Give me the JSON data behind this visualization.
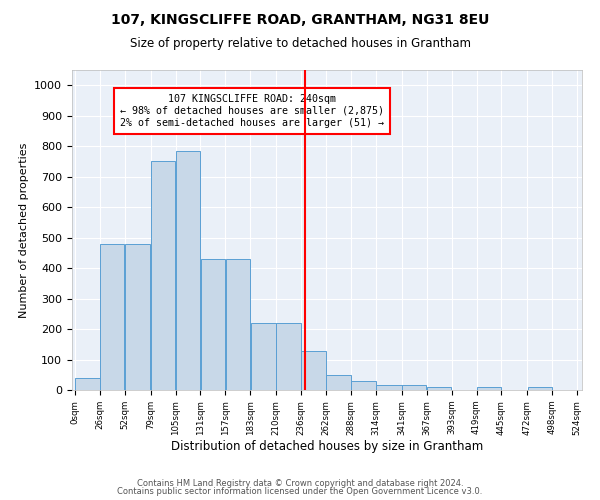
{
  "title": "107, KINGSCLIFFE ROAD, GRANTHAM, NG31 8EU",
  "subtitle": "Size of property relative to detached houses in Grantham",
  "xlabel": "Distribution of detached houses by size in Grantham",
  "ylabel": "Number of detached properties",
  "bar_color": "#c8d8e8",
  "bar_edge_color": "#5a9fd4",
  "background_color": "#eaf0f8",
  "grid_color": "#ffffff",
  "red_line_x": 240,
  "annotation_text": "107 KINGSCLIFFE ROAD: 240sqm\n← 98% of detached houses are smaller (2,875)\n2% of semi-detached houses are larger (51) →",
  "bin_edges": [
    0,
    26,
    52,
    79,
    105,
    131,
    157,
    183,
    210,
    236,
    262,
    288,
    314,
    341,
    367,
    393,
    419,
    445,
    472,
    498,
    524
  ],
  "bar_heights": [
    40,
    480,
    480,
    750,
    785,
    430,
    430,
    220,
    220,
    128,
    50,
    28,
    15,
    15,
    10,
    0,
    10,
    0,
    10,
    0
  ],
  "ylim": [
    0,
    1050
  ],
  "yticks": [
    0,
    100,
    200,
    300,
    400,
    500,
    600,
    700,
    800,
    900,
    1000
  ],
  "footer1": "Contains HM Land Registry data © Crown copyright and database right 2024.",
  "footer2": "Contains public sector information licensed under the Open Government Licence v3.0."
}
